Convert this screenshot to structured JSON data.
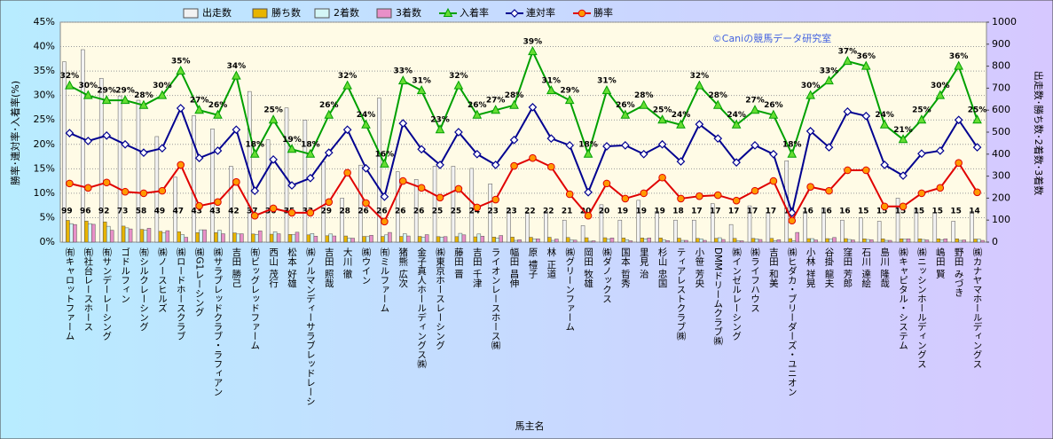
{
  "chart_data": {
    "type": "bar",
    "annotation": "©Caniの競馬データ研究室",
    "xlabel": "馬主名",
    "ylabel": "勝率･連対率･入着率(%)",
    "y2label": "出走数･勝ち数･2着数･3着数",
    "categories": [
      "㈲キャロットファーム",
      "㈲社台レースホース",
      "㈲サンデーレーシング",
      "ゴドルフィン",
      "㈲シルクレーシング",
      "㈱ノースヒルズ",
      "㈱ロードホースクラブ",
      "㈱G1レーシング",
      "㈱サラブレッドクラブ・ラフィアン",
      "吉田 勝己",
      "㈲ビッグレッドファーム",
      "西山 茂行",
      "松本 好雄",
      "㈱ノルマンディーサラブレッドレーシ",
      "吉田 照哉",
      "大川 徹",
      "㈱ウイン",
      "㈲ミルファーム",
      "猪熊 広次",
      "金子真人ホールディングス㈱",
      "㈱東京ホースレーシング",
      "藤田 晋",
      "吉田 千津",
      "ライオンレースホース㈱",
      "幅田 昌伸",
      "原 禮子",
      "林 正道",
      "㈱グリーンファーム",
      "岡田 牧雄",
      "㈱ダノックス",
      "国本 哲秀",
      "里見 治",
      "杉山 忠国",
      "ティアレストクラブ㈱",
      "小笹 芳央",
      "DMMドリームクラブ㈱",
      "㈱インゼルレーシング",
      "㈱ライフハウス",
      "吉田 和美",
      "㈱ヒダカ・ブリーダーズ・ユニオン",
      "小林 祥晃",
      "谷掛 龍夫",
      "窪田 芳郎",
      "石川 達絵",
      "島川 隆哉",
      "㈱キャピタル・システム",
      "㈱ニッシンホールディングス",
      "嶋田 賢",
      "野田 みづき",
      "㈱カナヤマホールディングス"
    ],
    "series": [
      {
        "name": "出走数",
        "axis": "y2",
        "color": "#f2f2f2",
        "values": [
          820,
          875,
          745,
          665,
          645,
          480,
          295,
          575,
          515,
          345,
          685,
          465,
          610,
          555,
          365,
          200,
          350,
          655,
          320,
          285,
          345,
          345,
          335,
          265,
          150,
          130,
          140,
          100,
          75,
          170,
          100,
          190,
          140,
          100,
          100,
          175,
          80,
          165,
          135,
          370,
          140,
          155,
          100,
          110,
          95,
          200,
          150,
          135,
          95,
          140
        ]
      },
      {
        "name": "勝ち数",
        "axis": "y2",
        "color": "#e8b400",
        "values": [
          99,
          96,
          92,
          73,
          58,
          49,
          47,
          43,
          43,
          42,
          37,
          36,
          35,
          33,
          29,
          28,
          26,
          26,
          26,
          26,
          25,
          25,
          24,
          23,
          23,
          22,
          22,
          21,
          20,
          20,
          19,
          19,
          19,
          18,
          17,
          17,
          17,
          17,
          17,
          16,
          16,
          16,
          16,
          15,
          15,
          15,
          15,
          15,
          15,
          14
        ]
      },
      {
        "name": "2着数",
        "axis": "y2",
        "color": "#d4f6f6",
        "values": [
          84,
          84,
          72,
          65,
          54,
          42,
          34,
          56,
          54,
          37,
          35,
          47,
          34,
          39,
          37,
          18,
          25,
          33,
          38,
          23,
          23,
          40,
          37,
          19,
          8,
          14,
          8,
          10,
          4,
          13,
          11,
          15,
          10,
          8,
          15,
          20,
          6,
          15,
          7,
          6,
          16,
          14,
          12,
          12,
          8,
          13,
          12,
          10,
          8,
          13
        ]
      },
      {
        "name": "3着数",
        "axis": "y2",
        "color": "#e890c8",
        "values": [
          80,
          81,
          54,
          60,
          63,
          52,
          22,
          56,
          38,
          38,
          51,
          38,
          45,
          27,
          28,
          18,
          31,
          44,
          28,
          34,
          25,
          33,
          27,
          30,
          11,
          15,
          14,
          9,
          6,
          19,
          6,
          19,
          7,
          8,
          8,
          12,
          6,
          12,
          11,
          44,
          10,
          21,
          10,
          11,
          8,
          15,
          10,
          15,
          10,
          8
        ]
      },
      {
        "name": "入着率",
        "type": "line",
        "color": "#00a000",
        "marker": "triangle",
        "values": [
          32,
          30,
          29,
          29,
          28,
          30,
          35,
          27,
          26,
          34,
          18,
          25,
          19,
          18,
          26,
          32,
          24,
          16,
          33,
          31,
          23,
          32,
          26,
          27,
          28,
          39,
          31,
          29,
          18,
          31,
          26,
          28,
          25,
          24,
          32,
          28,
          24,
          27,
          26,
          18,
          30,
          33,
          37,
          36,
          24,
          21,
          25,
          30,
          36,
          25
        ],
        "value_labels": [
          "32%",
          "30%",
          "29%",
          "29%",
          "28%",
          "30%",
          "35%",
          "27%",
          "26%",
          "34%",
          "18%",
          "25%",
          "19%",
          "18%",
          "26%",
          "32%",
          "24%",
          "16%",
          "33%",
          "31%",
          "23%",
          "32%",
          "26%",
          "27%",
          "28%",
          "39%",
          "31%",
          "29%",
          "18%",
          "31%",
          "26%",
          "28%",
          "25%",
          "24%",
          "32%",
          "28%",
          "24%",
          "27%",
          "26%",
          "18%",
          "30%",
          "33%",
          "37%",
          "36%",
          "24%",
          "21%",
          "25%",
          "30%",
          "36%",
          "25%"
        ]
      },
      {
        "name": "連対率",
        "type": "line",
        "color": "#000090",
        "marker": "diamond",
        "values": [
          22.3,
          20.7,
          21.8,
          20,
          18.3,
          19.2,
          27.4,
          17.2,
          18.7,
          23,
          10.5,
          16.9,
          11.6,
          13.1,
          18.3,
          23,
          15.1,
          9.3,
          24.3,
          19,
          15.8,
          22.5,
          18,
          15.8,
          20.9,
          27.6,
          21.2,
          19.8,
          10.2,
          19.6,
          19.8,
          18,
          20,
          16.5,
          24.1,
          21.2,
          16.3,
          19.8,
          18,
          6,
          22.7,
          19.4,
          26.7,
          25.8,
          15.8,
          13.6,
          18.1,
          18.7,
          25,
          19.4
        ]
      },
      {
        "name": "勝率",
        "type": "line",
        "color": "#e00000",
        "marker": "circle",
        "values": [
          12,
          11.1,
          12.2,
          10.3,
          10,
          10.5,
          15.8,
          7.4,
          8.2,
          12.3,
          5.4,
          6.9,
          6,
          6,
          8.2,
          14.2,
          8,
          4.2,
          12.5,
          11.1,
          9.1,
          10.9,
          7.1,
          8.7,
          15.6,
          17.2,
          15.4,
          9.8,
          5.4,
          12,
          8.9,
          10,
          13.2,
          8.9,
          9.4,
          9.6,
          8.5,
          10.5,
          12.5,
          4.4,
          11.3,
          10.5,
          14.7,
          14.7,
          7.3,
          7.3,
          10,
          11.1,
          16.2,
          10.2
        ]
      }
    ],
    "ylim": [
      0,
      45
    ],
    "yticks": [
      {
        "value": 0,
        "label": "0%"
      },
      {
        "value": 5,
        "label": "5%"
      },
      {
        "value": 10,
        "label": "10%"
      },
      {
        "value": 15,
        "label": "15%"
      },
      {
        "value": 20,
        "label": "20%"
      },
      {
        "value": 25,
        "label": "25%"
      },
      {
        "value": 30,
        "label": "30%"
      },
      {
        "value": 35,
        "label": "35%"
      },
      {
        "value": 40,
        "label": "40%"
      },
      {
        "value": 45,
        "label": "45%"
      }
    ],
    "y2lim": [
      0,
      1000
    ],
    "y2ticks": [
      0,
      100,
      200,
      300,
      400,
      500,
      600,
      700,
      800,
      900,
      1000
    ],
    "grid": true
  }
}
